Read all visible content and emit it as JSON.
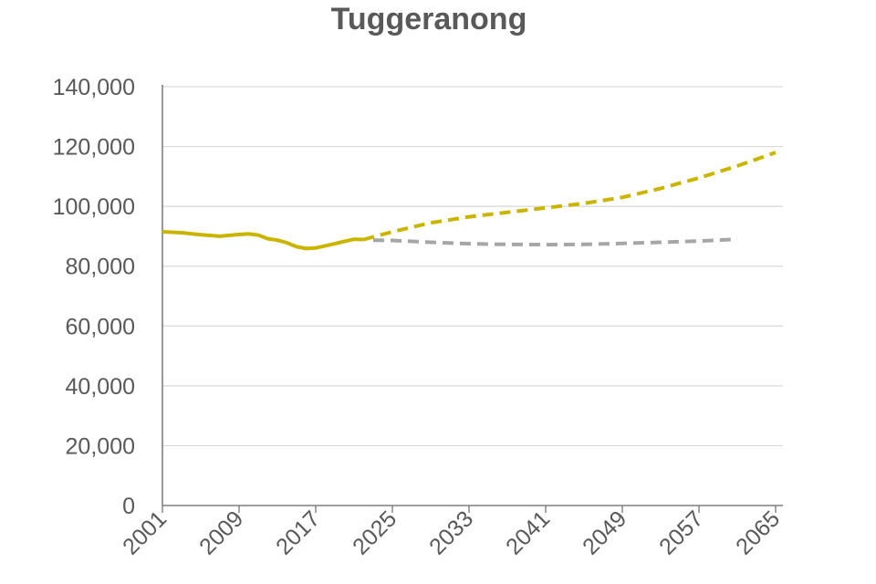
{
  "chart_data": {
    "type": "line",
    "title": "Tuggeranong",
    "xlabel": "",
    "ylabel": "",
    "xlim": [
      2001,
      2065
    ],
    "ylim": [
      0,
      140000
    ],
    "y_ticks": [
      0,
      20000,
      40000,
      60000,
      80000,
      100000,
      120000,
      140000
    ],
    "y_tick_labels": [
      "0",
      "20,000",
      "40,000",
      "60,000",
      "80,000",
      "100,000",
      "120,000",
      "140,000"
    ],
    "x_ticks": [
      2001,
      2009,
      2017,
      2025,
      2033,
      2041,
      2049,
      2057,
      2065
    ],
    "x_tick_labels": [
      "2001",
      "2009",
      "2017",
      "2025",
      "2033",
      "2041",
      "2049",
      "2057",
      "2065"
    ],
    "grid": true,
    "legend": "none",
    "series": [
      {
        "style": "solid",
        "color": "#c9b400",
        "points": [
          [
            2001,
            91500
          ],
          [
            2003,
            91200
          ],
          [
            2005,
            90500
          ],
          [
            2007,
            90000
          ],
          [
            2008,
            90300
          ],
          [
            2009,
            90600
          ],
          [
            2010,
            90800
          ],
          [
            2011,
            90400
          ],
          [
            2012,
            89200
          ],
          [
            2013,
            88700
          ],
          [
            2014,
            87800
          ],
          [
            2015,
            86500
          ],
          [
            2016,
            85900
          ],
          [
            2017,
            86100
          ],
          [
            2018,
            86800
          ],
          [
            2019,
            87500
          ],
          [
            2020,
            88300
          ],
          [
            2021,
            89000
          ],
          [
            2022,
            88900
          ]
        ]
      },
      {
        "style": "dashed",
        "color": "#c9b400",
        "points": [
          [
            2022,
            88900
          ],
          [
            2025,
            91500
          ],
          [
            2029,
            94500
          ],
          [
            2033,
            96500
          ],
          [
            2037,
            98000
          ],
          [
            2041,
            99500
          ],
          [
            2045,
            101000
          ],
          [
            2049,
            103000
          ],
          [
            2053,
            106000
          ],
          [
            2057,
            109500
          ],
          [
            2061,
            113500
          ],
          [
            2065,
            118000
          ]
        ]
      },
      {
        "style": "dashed",
        "color": "#a6a6a6",
        "points": [
          [
            2023,
            88700
          ],
          [
            2025,
            88600
          ],
          [
            2029,
            88000
          ],
          [
            2033,
            87500
          ],
          [
            2037,
            87300
          ],
          [
            2041,
            87200
          ],
          [
            2045,
            87300
          ],
          [
            2049,
            87600
          ],
          [
            2053,
            88000
          ],
          [
            2057,
            88400
          ],
          [
            2061,
            89000
          ]
        ]
      }
    ]
  }
}
